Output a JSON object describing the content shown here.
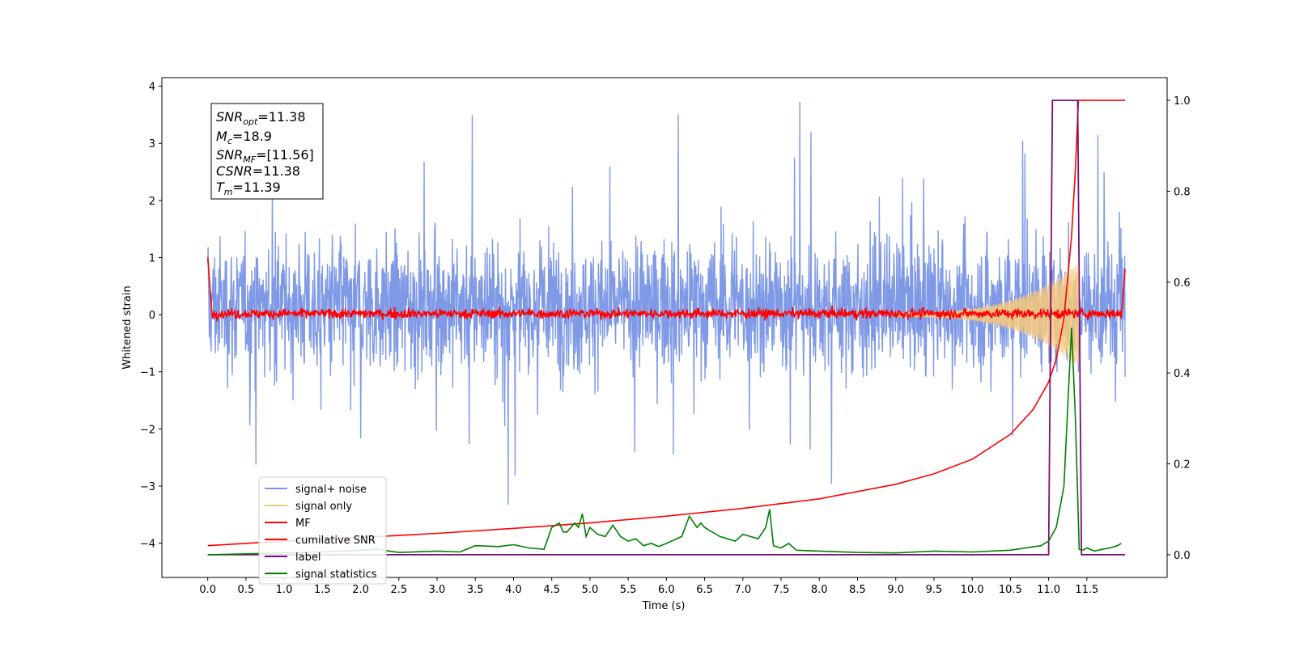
{
  "chart_data": {
    "type": "line",
    "xlabel": "Time (s)",
    "ylabel": "Whitened strain",
    "xlim": [
      -0.6,
      12.55
    ],
    "ylim": [
      -4.6,
      4.15
    ],
    "y2lim": [
      -0.05,
      1.05
    ],
    "x_ticks": [
      0.0,
      0.5,
      1.0,
      1.5,
      2.0,
      2.5,
      3.0,
      3.5,
      4.0,
      4.5,
      5.0,
      5.5,
      6.0,
      6.5,
      7.0,
      7.5,
      8.0,
      8.5,
      9.0,
      9.5,
      10.0,
      10.5,
      11.0,
      11.5
    ],
    "x_tick_labels": [
      "0.0",
      "0.5",
      "1.0",
      "1.5",
      "2.0",
      "2.5",
      "3.0",
      "3.5",
      "4.0",
      "4.5",
      "5.0",
      "5.5",
      "6.0",
      "6.5",
      "7.0",
      "7.5",
      "8.0",
      "8.5",
      "9.0",
      "9.5",
      "10.0",
      "10.5",
      "11.0",
      "11.5"
    ],
    "y_ticks": [
      4,
      3,
      2,
      1,
      0,
      -1,
      -2,
      -3,
      -4
    ],
    "y_tick_labels": [
      "4",
      "3",
      "2",
      "1",
      "0",
      "−1",
      "−2",
      "−3",
      "−4"
    ],
    "y2_ticks": [
      1.0,
      0.8,
      0.6,
      0.4,
      0.2,
      0.0
    ],
    "y2_tick_labels": [
      "1.0",
      "0.8",
      "0.6",
      "0.4",
      "0.2",
      "0.0"
    ],
    "info_box": {
      "snr_opt": {
        "main": "SNR",
        "sub": "opt",
        "value": "=11.38"
      },
      "mc": {
        "main": "M",
        "sub": "c",
        "value": "=18.9"
      },
      "snr_mf": {
        "main": "SNR",
        "sub": "MF",
        "value": "=[11.56]"
      },
      "csnr": {
        "main": "CSNR",
        "value": "=11.38"
      },
      "tm": {
        "main": "T",
        "sub": "m",
        "value": "=11.39"
      }
    },
    "legend": [
      {
        "label": "signal+ noise",
        "color": "#7893e6"
      },
      {
        "label": "signal only",
        "color": "#f7c87a"
      },
      {
        "label": "MF",
        "color": "#ff0000"
      },
      {
        "label": "cumilative SNR",
        "color": "#ff0000"
      },
      {
        "label": "label",
        "color": "#7b0f7b"
      },
      {
        "label": "signal statistics",
        "color": "#008000"
      }
    ],
    "series": [
      {
        "name": "signal+ noise",
        "axis": "left",
        "kind": "noise",
        "x_range": [
          0.0,
          12.0
        ],
        "typical_amplitude": [
          -2.4,
          2.8
        ],
        "color": "#7893e6"
      },
      {
        "name": "signal only",
        "axis": "left",
        "kind": "chirp",
        "x_range": [
          9.0,
          11.39
        ],
        "peak_amplitude": 0.9,
        "color": "#f7c87a"
      },
      {
        "name": "MF",
        "axis": "left",
        "kind": "noise",
        "x_range": [
          0.0,
          12.0
        ],
        "typical_amplitude": [
          -0.1,
          0.15
        ],
        "color": "#ff0000"
      },
      {
        "name": "cumilative SNR",
        "axis": "right",
        "x": [
          0.0,
          1.0,
          2.0,
          3.0,
          4.0,
          5.0,
          6.0,
          7.0,
          8.0,
          9.0,
          9.5,
          10.0,
          10.5,
          10.8,
          11.0,
          11.1,
          11.2,
          11.3,
          11.35,
          11.39,
          12.0
        ],
        "y": [
          0.02,
          0.03,
          0.038,
          0.047,
          0.058,
          0.07,
          0.085,
          0.102,
          0.123,
          0.155,
          0.178,
          0.21,
          0.265,
          0.32,
          0.38,
          0.43,
          0.52,
          0.7,
          0.85,
          1.0,
          1.0
        ],
        "color": "#ff0000"
      },
      {
        "name": "label",
        "axis": "right",
        "x": [
          0.0,
          11.0,
          11.05,
          11.38,
          11.43,
          12.0
        ],
        "y": [
          0.0,
          0.0,
          1.0,
          1.0,
          0.0,
          0.0
        ],
        "color": "#7b0f7b"
      },
      {
        "name": "signal statistics",
        "axis": "right",
        "x": [
          0.0,
          0.5,
          1.0,
          1.5,
          2.0,
          2.2,
          2.5,
          3.0,
          3.3,
          3.5,
          3.8,
          4.0,
          4.2,
          4.4,
          4.5,
          4.6,
          4.65,
          4.7,
          4.8,
          4.85,
          4.9,
          4.95,
          5.0,
          5.1,
          5.2,
          5.3,
          5.4,
          5.5,
          5.6,
          5.7,
          5.8,
          5.9,
          6.0,
          6.2,
          6.3,
          6.4,
          6.45,
          6.5,
          6.6,
          6.7,
          6.8,
          6.9,
          7.0,
          7.1,
          7.2,
          7.3,
          7.35,
          7.4,
          7.5,
          7.6,
          7.7,
          8.0,
          8.5,
          9.0,
          9.5,
          10.0,
          10.5,
          10.9,
          11.0,
          11.1,
          11.2,
          11.3,
          11.35,
          11.4,
          11.45,
          11.5,
          11.6,
          11.7,
          11.8,
          11.9,
          11.95
        ],
        "y": [
          0.0,
          0.002,
          0.004,
          0.006,
          0.01,
          0.012,
          0.005,
          0.008,
          0.006,
          0.02,
          0.018,
          0.022,
          0.015,
          0.012,
          0.06,
          0.07,
          0.05,
          0.05,
          0.07,
          0.06,
          0.09,
          0.04,
          0.06,
          0.045,
          0.04,
          0.065,
          0.04,
          0.03,
          0.035,
          0.02,
          0.025,
          0.018,
          0.025,
          0.04,
          0.085,
          0.06,
          0.07,
          0.06,
          0.05,
          0.04,
          0.035,
          0.03,
          0.045,
          0.04,
          0.035,
          0.06,
          0.1,
          0.02,
          0.015,
          0.025,
          0.01,
          0.008,
          0.005,
          0.004,
          0.008,
          0.006,
          0.01,
          0.02,
          0.03,
          0.06,
          0.15,
          0.5,
          0.3,
          0.012,
          0.01,
          0.015,
          0.008,
          0.012,
          0.015,
          0.02,
          0.025
        ],
        "color": "#008000"
      }
    ]
  }
}
